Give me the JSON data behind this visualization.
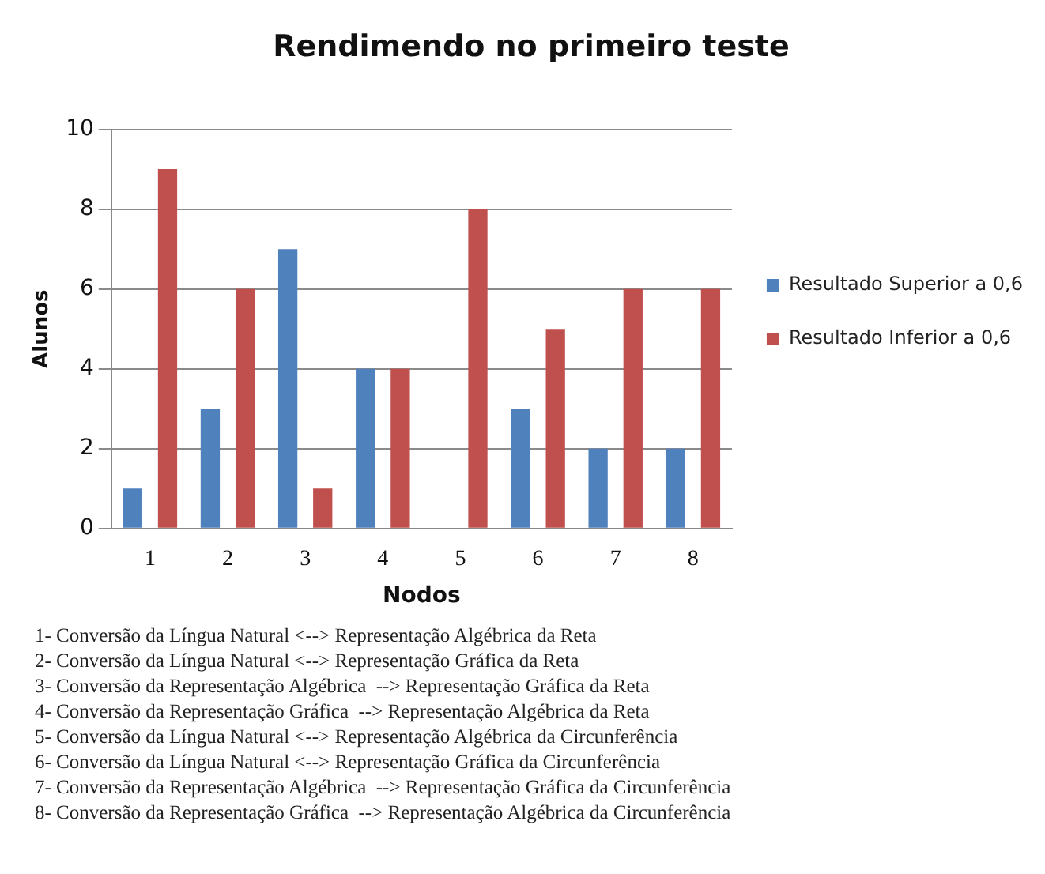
{
  "chart_data": {
    "type": "bar",
    "title": "Rendimendo no primeiro teste",
    "xlabel": "Nodos",
    "ylabel": "Alunos",
    "categories": [
      "1",
      "2",
      "3",
      "4",
      "5",
      "6",
      "7",
      "8"
    ],
    "series": [
      {
        "name": "Resultado Superior a 0,6",
        "color": "#4f81bd",
        "values": [
          1,
          3,
          7,
          4,
          0,
          3,
          2,
          2
        ]
      },
      {
        "name": "Resultado Inferior a 0,6",
        "color": "#c0504d",
        "values": [
          9,
          6,
          1,
          4,
          8,
          5,
          6,
          6
        ]
      }
    ],
    "ylim": [
      0,
      10
    ],
    "yticks": [
      0,
      2,
      4,
      6,
      8,
      10
    ],
    "grid": "y",
    "legend": "right",
    "annotations": [
      "1- Conversão da Língua Natural <--> Representação Algébrica da Reta",
      "2- Conversão da Língua Natural <--> Representação Gráfica da Reta",
      "3- Conversão da Representação Algébrica  --> Representação Gráfica da Reta",
      "4- Conversão da Representação Gráfica  --> Representação Algébrica da Reta",
      "5- Conversão da Língua Natural <--> Representação Algébrica da Circunferência",
      "6- Conversão da Língua Natural <--> Representação Gráfica da Circunferência",
      "7- Conversão da Representação Algébrica  --> Representação Gráfica da Circunferência",
      "8- Conversão da Representação Gráfica  --> Representação Algébrica da Circunferência"
    ]
  }
}
